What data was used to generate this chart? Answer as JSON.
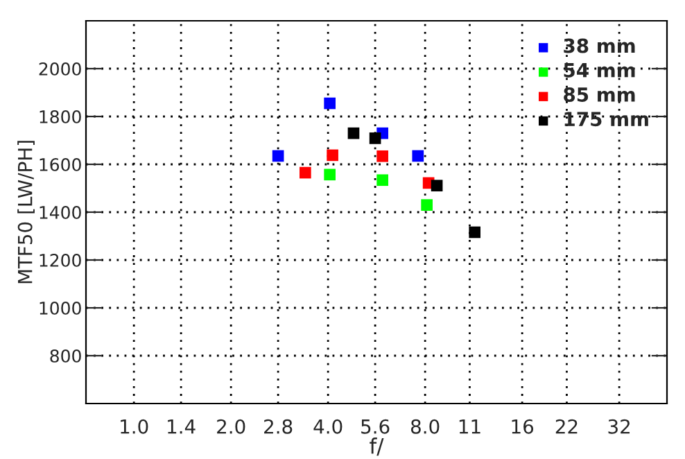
{
  "chart_data": {
    "type": "scatter",
    "xlabel": "f/",
    "ylabel": "MTF50 [LW/PH]",
    "log": "x",
    "marker": "square",
    "grid": true,
    "legend": "top right",
    "xlim": [
      0.71,
      45
    ],
    "xticks": [
      {
        "value": 1.0,
        "label": "1.0"
      },
      1.4,
      {
        "value": 2.0,
        "label": "2.0"
      },
      2.8,
      {
        "value": 4.0,
        "label": "4.0"
      },
      5.6,
      {
        "value": 8.0,
        "label": "8.0"
      },
      11,
      16,
      22,
      32
    ],
    "ylim": [
      600,
      2200
    ],
    "yticks": [
      800,
      1000,
      1200,
      1400,
      1600,
      1800,
      2000
    ],
    "series": [
      {
        "name": "38 mm",
        "color": "#0000ff",
        "x": [
          2.8,
          4.05,
          5.9,
          7.6
        ],
        "values": [
          1635,
          1855,
          1730,
          1635
        ]
      },
      {
        "name": "54 mm",
        "color": "#00ff00",
        "x": [
          4.05,
          5.9,
          8.1
        ],
        "values": [
          1557,
          1534,
          1430
        ]
      },
      {
        "name": "85 mm",
        "color": "#ff0000",
        "x": [
          3.4,
          4.13,
          5.9,
          8.2
        ],
        "values": [
          1565,
          1638,
          1634,
          1522
        ]
      },
      {
        "name": "175 mm",
        "color": "#000000",
        "x": [
          4.8,
          5.6,
          8.7,
          11.4
        ],
        "values": [
          1730,
          1709,
          1511,
          1316
        ]
      }
    ]
  }
}
